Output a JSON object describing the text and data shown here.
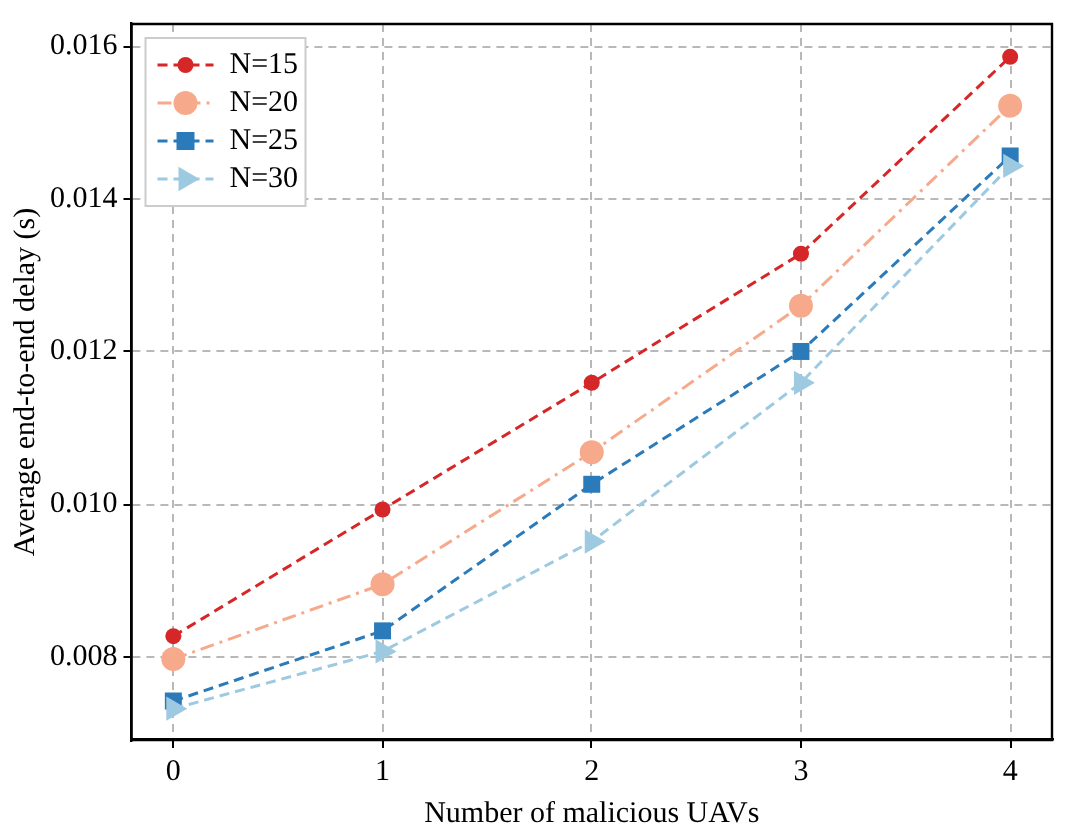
{
  "chart_data": {
    "type": "line",
    "xlabel": "Number of malicious UAVs",
    "ylabel": "Average end-to-end delay (s)",
    "x": [
      0,
      1,
      2,
      3,
      4
    ],
    "series": [
      {
        "name": "N=15",
        "color": "#d62728",
        "marker": "circle",
        "line_style": "dashed",
        "values": [
          0.00827,
          0.00993,
          0.01159,
          0.01328,
          0.01586
        ]
      },
      {
        "name": "N=20",
        "color": "#f7a98b",
        "marker": "circle",
        "line_style": "dashdot",
        "values": [
          0.00797,
          0.00895,
          0.01068,
          0.0126,
          0.01522
        ]
      },
      {
        "name": "N=25",
        "color": "#2b7bba",
        "marker": "square",
        "line_style": "dashed",
        "values": [
          0.00742,
          0.00834,
          0.01026,
          0.012,
          0.01456
        ]
      },
      {
        "name": "N=30",
        "color": "#9ecae1",
        "marker": "triangle",
        "line_style": "dashed",
        "values": [
          0.00732,
          0.00807,
          0.00951,
          0.01159,
          0.01443
        ]
      }
    ],
    "xlim": [
      -0.2,
      4.2
    ],
    "xticks": [
      0,
      1,
      2,
      3,
      4
    ],
    "ylim": [
      0.00691,
      0.01629
    ],
    "yticks": [
      {
        "value": 0.008,
        "label": "0.008"
      },
      {
        "value": 0.01,
        "label": "0.010"
      },
      {
        "value": 0.012,
        "label": "0.012"
      },
      {
        "value": 0.014,
        "label": "0.014"
      },
      {
        "value": 0.016,
        "label": "0.016"
      }
    ],
    "grid": true,
    "legend": "top left"
  }
}
